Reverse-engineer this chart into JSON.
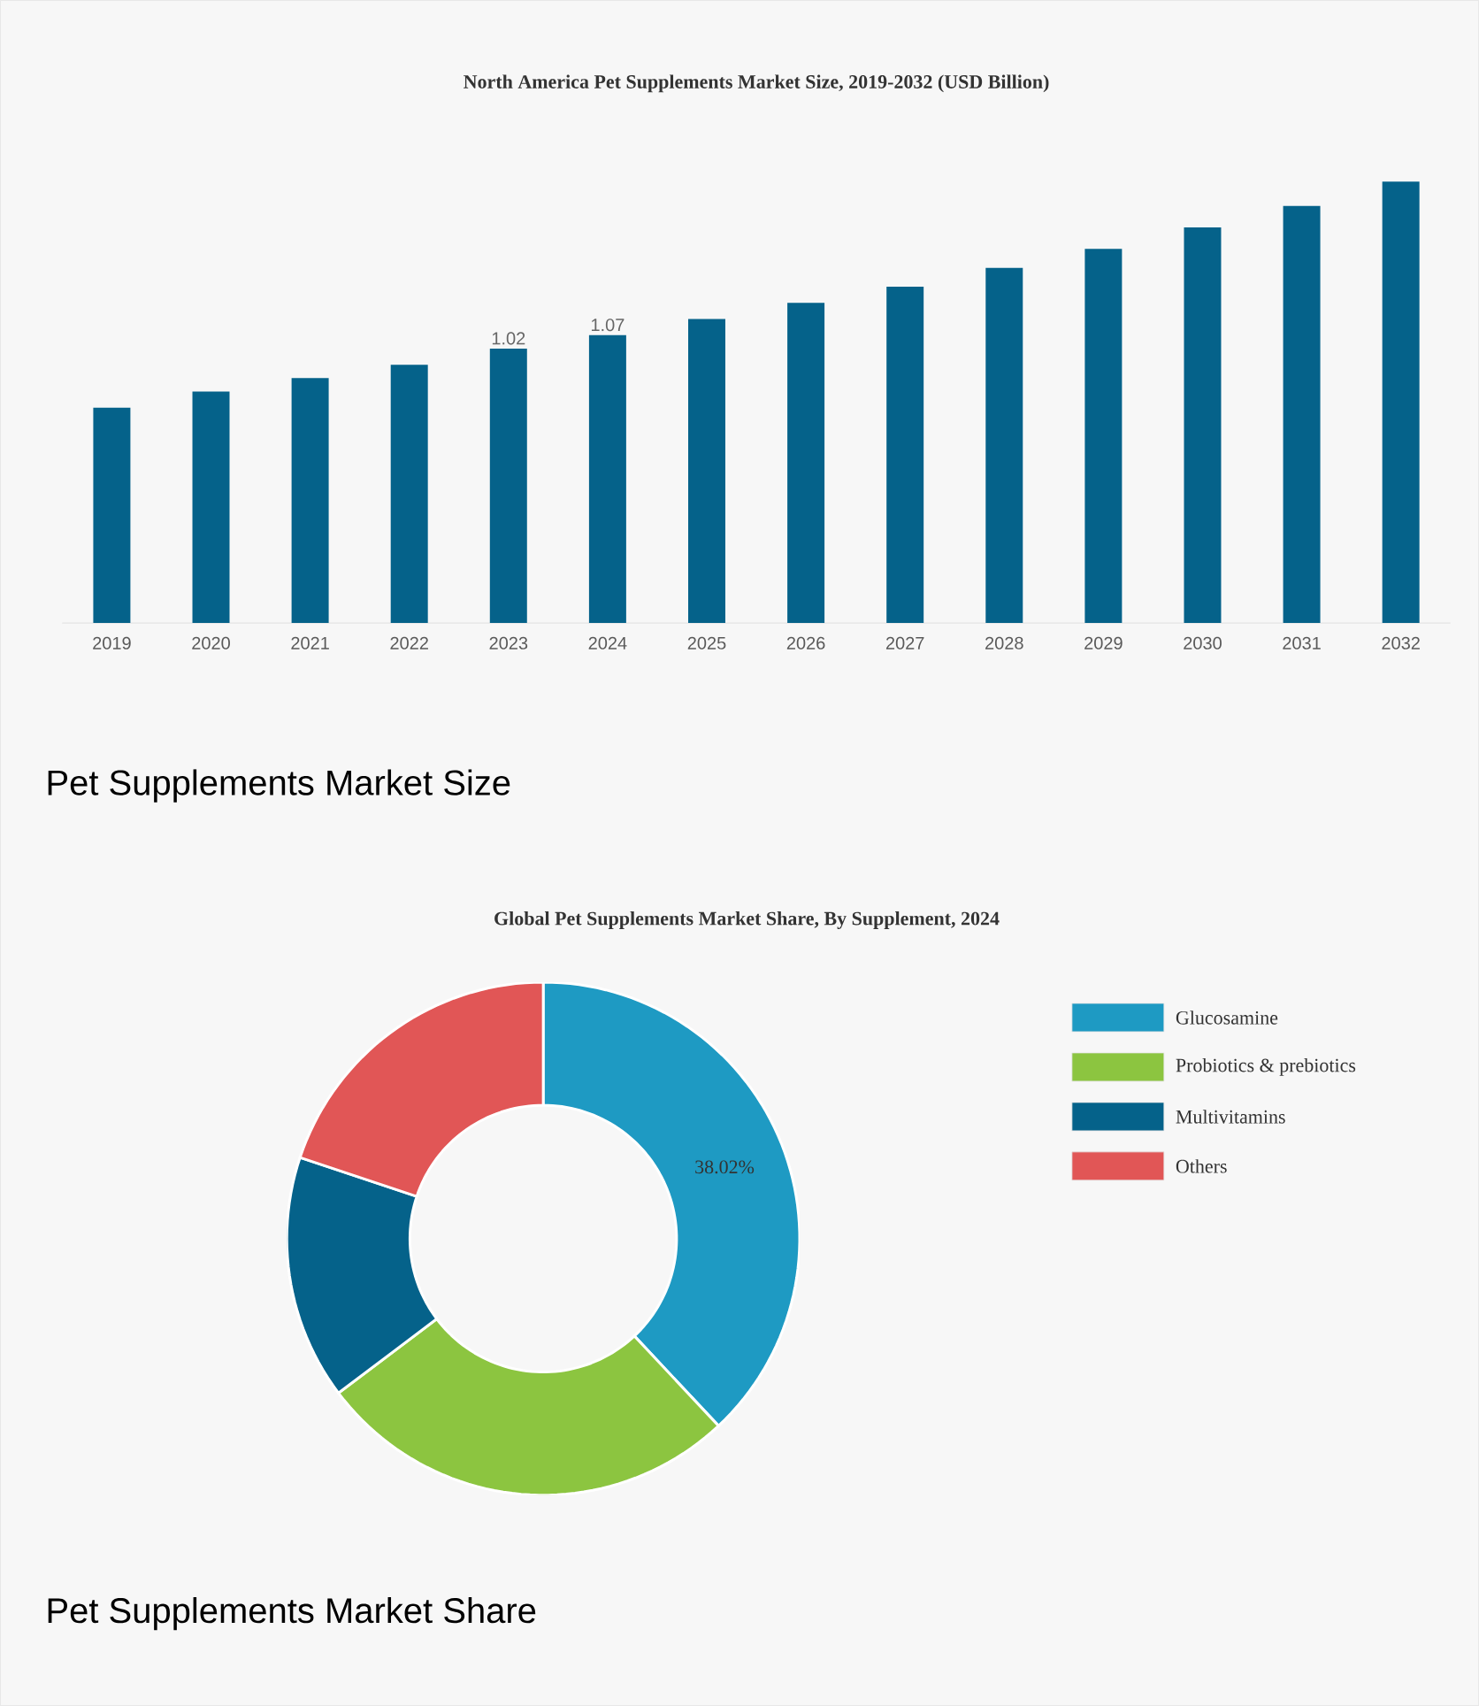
{
  "chart_data": [
    {
      "type": "bar",
      "title": "North America Pet Supplements Market Size, 2019-2032 (USD Billion)",
      "categories": [
        "2019",
        "2020",
        "2021",
        "2022",
        "2023",
        "2024",
        "2025",
        "2026",
        "2027",
        "2028",
        "2029",
        "2030",
        "2031",
        "2032"
      ],
      "values": [
        0.8,
        0.86,
        0.91,
        0.96,
        1.02,
        1.07,
        1.13,
        1.19,
        1.25,
        1.32,
        1.39,
        1.47,
        1.55,
        1.64
      ],
      "value_labels": [
        null,
        null,
        null,
        null,
        "1.02",
        "1.07",
        null,
        null,
        null,
        null,
        null,
        null,
        null,
        null
      ],
      "color": "#05628a",
      "annotations": [
        "Pet Supplements Market Size"
      ]
    },
    {
      "type": "donut",
      "title": "Global Pet Supplements Market Share, By Supplement, 2024",
      "categories": [
        "Glucosamine",
        "Probiotics & prebiotics",
        "Multivitamins",
        "Others"
      ],
      "values": [
        38.02,
        26.7,
        15.4,
        19.88
      ],
      "colors": [
        "#1e9ac3",
        "#8cc540",
        "#05628a",
        "#e15656"
      ],
      "value_labels": [
        "38.02%",
        null,
        null,
        null
      ],
      "legend": "right",
      "annotations": [
        "Pet Supplements Market Share"
      ]
    }
  ]
}
